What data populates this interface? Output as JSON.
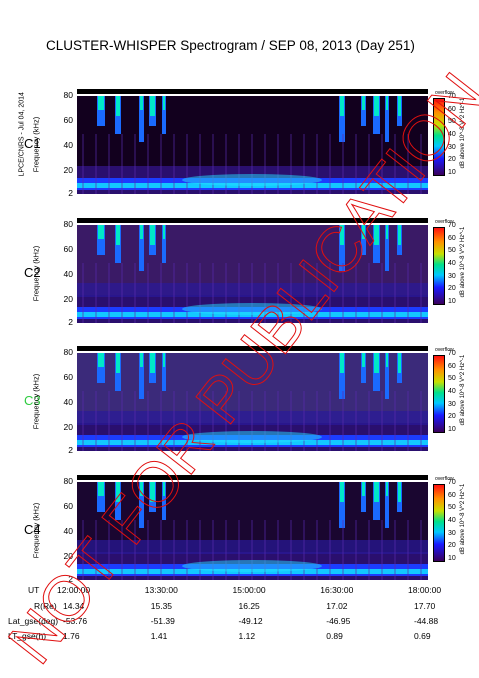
{
  "title": "CLUSTER-WHISPER Spectrogram / SEP 08, 2013 (Day 251)",
  "side_label": "LPCE/CNRS - Jul 04, 2014",
  "watermark": "NOT FOR PUBLICATION",
  "watermark_color": "#e01010",
  "chart_data": [
    {
      "type": "heatmap",
      "panel": "C1",
      "panel_color": "#000000",
      "ylabel": "Frequency (kHz)",
      "yticks": [
        2,
        20,
        40,
        60,
        80
      ],
      "ylim": [
        2,
        80
      ],
      "colorbar_label": "dB above 10^-8 V^2 Hz^-1",
      "colorbar_ticks": [
        10,
        20,
        30,
        40,
        50,
        60,
        70
      ],
      "colorbar_top": "overflow"
    },
    {
      "type": "heatmap",
      "panel": "C2",
      "panel_color": "#000000",
      "ylabel": "Frequency (kHz)",
      "yticks": [
        2,
        20,
        40,
        60,
        80
      ],
      "ylim": [
        2,
        80
      ],
      "colorbar_label": "dB above 10^-8 V^2 Hz^-1",
      "colorbar_ticks": [
        10,
        20,
        30,
        40,
        50,
        60,
        70
      ],
      "colorbar_top": "overflow"
    },
    {
      "type": "heatmap",
      "panel": "C3",
      "panel_color": "#2ecc40",
      "ylabel": "Frequency (kHz)",
      "yticks": [
        2,
        20,
        40,
        60,
        80
      ],
      "ylim": [
        2,
        80
      ],
      "colorbar_label": "dB above 10^-8 V^2 Hz^-1",
      "colorbar_ticks": [
        10,
        20,
        30,
        40,
        50,
        60,
        70
      ],
      "colorbar_top": "overflow"
    },
    {
      "type": "heatmap",
      "panel": "C4",
      "panel_color": "#000000",
      "ylabel": "Frequency (kHz)",
      "yticks": [
        2,
        20,
        40,
        60,
        80
      ],
      "ylim": [
        2,
        80
      ],
      "colorbar_label": "dB above 10^-8 V^2 Hz^-1",
      "colorbar_ticks": [
        10,
        20,
        30,
        40,
        50,
        60,
        70
      ],
      "colorbar_top": "overflow"
    }
  ],
  "x_axis": {
    "label": "UT",
    "ticks": [
      "12:00:00",
      "13:30:00",
      "15:00:00",
      "16:30:00",
      "18:00:00"
    ]
  },
  "ephemeris": [
    {
      "label": "R(Re)",
      "values": [
        "14.34",
        "15.35",
        "16.25",
        "17.02",
        "17.70"
      ]
    },
    {
      "label": "Lat_gse(deg)",
      "values": [
        "-53.76",
        "-51.39",
        "-49.12",
        "-46.95",
        "-44.88"
      ]
    },
    {
      "label": "LT_gse(h)",
      "values": [
        "1.76",
        "1.41",
        "1.12",
        "0.89",
        "0.69"
      ]
    }
  ]
}
